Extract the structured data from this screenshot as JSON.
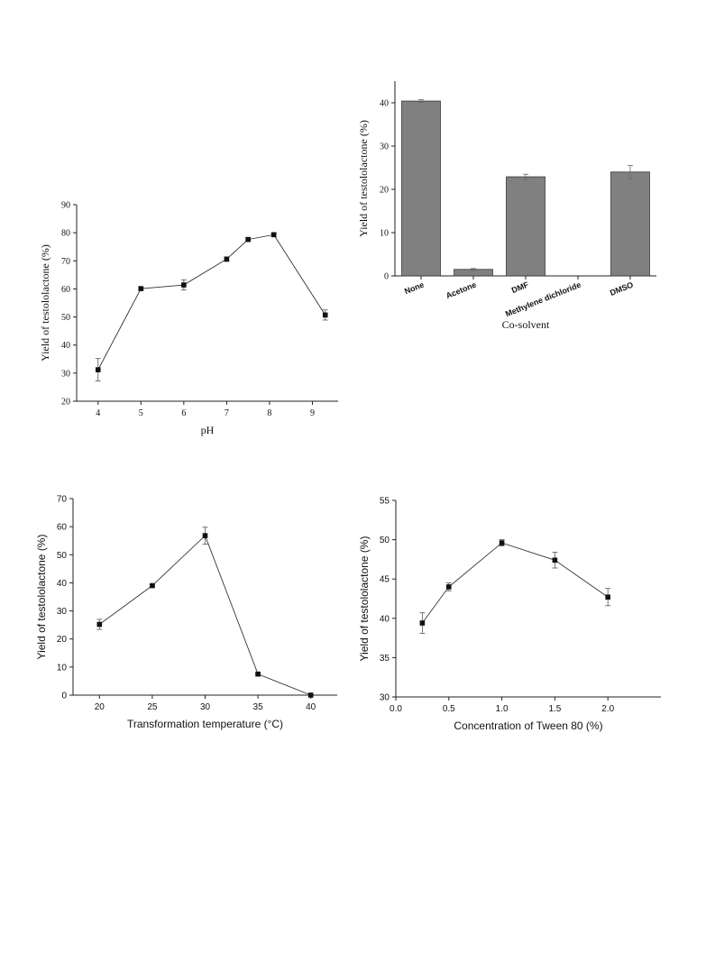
{
  "chart_data": [
    {
      "id": "ph",
      "type": "line",
      "xlabel": "pH",
      "ylabel": "Yield of testololactone (%)",
      "xlim": [
        3.5,
        9.6
      ],
      "ylim": [
        20,
        90
      ],
      "x_ticks": [
        4,
        5,
        6,
        7,
        8,
        9
      ],
      "y_ticks": [
        20,
        30,
        40,
        50,
        60,
        70,
        80,
        90
      ],
      "series": [
        {
          "x": [
            4,
            5,
            6,
            7,
            7.5,
            8.1,
            9.3
          ],
          "y": [
            31.2,
            60.1,
            61.4,
            70.6,
            77.6,
            79.3,
            50.7
          ],
          "err": [
            4.0,
            0.4,
            1.8,
            0.8,
            0.6,
            0.6,
            1.8
          ]
        }
      ]
    },
    {
      "id": "cosolvent",
      "type": "bar",
      "xlabel": "Co-solvent",
      "ylabel": "Yield of testololactone (%)",
      "ylim": [
        0,
        45
      ],
      "y_ticks": [
        0,
        10,
        20,
        30,
        40
      ],
      "categories": [
        "None",
        "Acetone",
        "DMF",
        "Methylene dichloride",
        "DMSO"
      ],
      "values": [
        40.4,
        1.5,
        22.9,
        0,
        24.0
      ],
      "err": [
        0.3,
        0.2,
        0.6,
        0,
        1.5
      ],
      "bar_color": "#808080"
    },
    {
      "id": "temperature",
      "type": "line",
      "xlabel": "Transformation temperature (°C)",
      "ylabel": "Yield of testololactone (%)",
      "xlim": [
        17.5,
        42.5
      ],
      "ylim": [
        0,
        70
      ],
      "x_ticks": [
        20,
        25,
        30,
        35,
        40
      ],
      "y_ticks": [
        0,
        10,
        20,
        30,
        40,
        50,
        60,
        70
      ],
      "series": [
        {
          "x": [
            20,
            25,
            30,
            35,
            40
          ],
          "y": [
            25.2,
            39.0,
            56.8,
            7.5,
            0
          ],
          "err": [
            1.8,
            0.4,
            3.0,
            0.3,
            0
          ]
        }
      ]
    },
    {
      "id": "tween",
      "type": "line",
      "xlabel": "Concentration of Tween 80 (%)",
      "ylabel": "Yield of testololactone (%)",
      "xlim": [
        0,
        2.5
      ],
      "ylim": [
        30,
        55
      ],
      "x_ticks": [
        0.0,
        0.5,
        1.0,
        1.5,
        2.0
      ],
      "x_tick_labels": [
        "0.0",
        "0.5",
        "1.0",
        "1.5",
        "2.0"
      ],
      "y_ticks": [
        30,
        35,
        40,
        45,
        50,
        55
      ],
      "series": [
        {
          "x": [
            0.25,
            0.5,
            1.0,
            1.5,
            2.0
          ],
          "y": [
            39.4,
            44.0,
            49.6,
            47.4,
            42.7
          ],
          "err": [
            1.3,
            0.5,
            0.4,
            1.0,
            1.1
          ]
        }
      ]
    }
  ]
}
